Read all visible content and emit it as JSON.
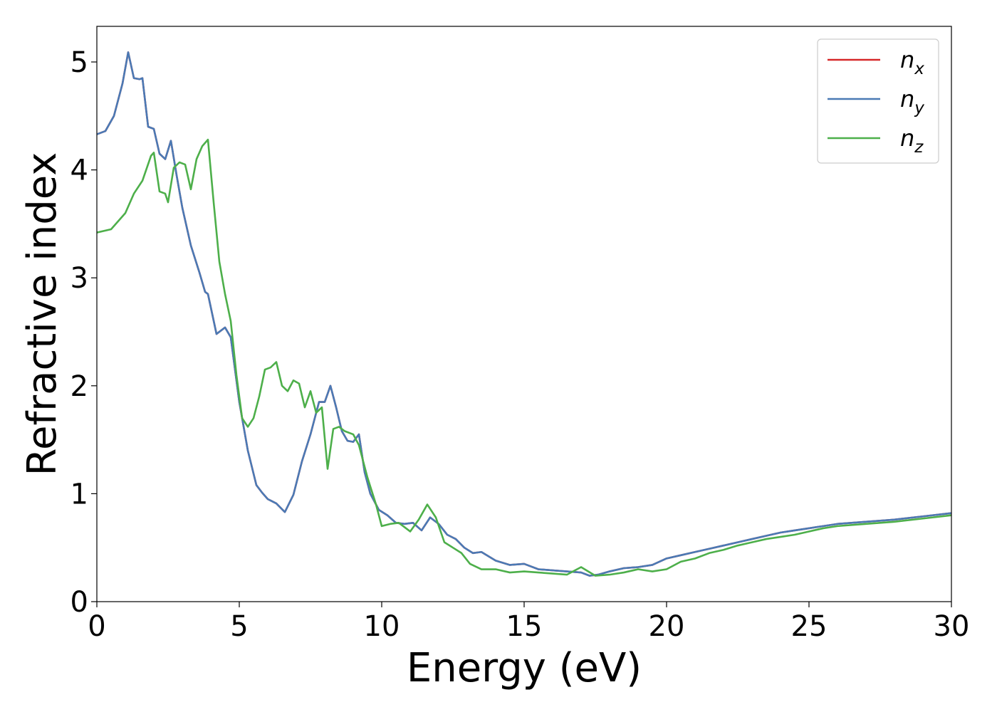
{
  "chart_data": {
    "type": "line",
    "title": "",
    "xlabel": "Energy (eV)",
    "ylabel": "Refractive index",
    "xlim": [
      0,
      30
    ],
    "ylim": [
      0,
      5.33
    ],
    "xticks": [
      0,
      5,
      10,
      15,
      20,
      25,
      30
    ],
    "xtick_labels": [
      "0",
      "5",
      "10",
      "15",
      "20",
      "25",
      "30"
    ],
    "yticks": [
      0,
      1,
      2,
      3,
      4,
      5
    ],
    "ytick_labels": [
      "0",
      "1",
      "2",
      "3",
      "4",
      "5"
    ],
    "grid": false,
    "legend_position": "top-right",
    "series": [
      {
        "name": "n",
        "subscript": "x",
        "color": "#d62728",
        "x": [
          0,
          0.3,
          0.6,
          0.9,
          1.1,
          1.3,
          1.5,
          1.6,
          1.8,
          2.0,
          2.2,
          2.4,
          2.6,
          2.8,
          3.0,
          3.3,
          3.6,
          3.8,
          3.9,
          4.2,
          4.5,
          4.7,
          5.0,
          5.3,
          5.6,
          5.8,
          6.0,
          6.3,
          6.6,
          6.9,
          7.2,
          7.5,
          7.8,
          8.0,
          8.2,
          8.4,
          8.6,
          8.8,
          9.0,
          9.2,
          9.4,
          9.6,
          9.9,
          10.2,
          10.5,
          10.8,
          11.1,
          11.4,
          11.7,
          12.0,
          12.3,
          12.6,
          12.9,
          13.2,
          13.5,
          14.0,
          14.5,
          15.0,
          15.5,
          16.0,
          16.5,
          17.0,
          17.3,
          17.6,
          18.0,
          18.5,
          19.0,
          19.5,
          20.0,
          20.5,
          21.0,
          21.5,
          22.0,
          22.5,
          23.0,
          23.5,
          24.0,
          24.5,
          25.0,
          25.5,
          26.0,
          27.0,
          28.0,
          29.0,
          30.0
        ],
        "values": [
          4.33,
          4.36,
          4.5,
          4.8,
          5.09,
          4.85,
          4.84,
          4.85,
          4.4,
          4.38,
          4.15,
          4.1,
          4.27,
          3.95,
          3.65,
          3.3,
          3.05,
          2.87,
          2.85,
          2.48,
          2.54,
          2.45,
          1.85,
          1.4,
          1.08,
          1.01,
          0.95,
          0.91,
          0.83,
          0.99,
          1.3,
          1.55,
          1.85,
          1.85,
          2.0,
          1.8,
          1.58,
          1.49,
          1.48,
          1.55,
          1.2,
          1.0,
          0.85,
          0.8,
          0.73,
          0.72,
          0.73,
          0.66,
          0.78,
          0.72,
          0.62,
          0.58,
          0.5,
          0.45,
          0.46,
          0.38,
          0.34,
          0.35,
          0.3,
          0.29,
          0.28,
          0.27,
          0.24,
          0.25,
          0.28,
          0.31,
          0.32,
          0.34,
          0.4,
          0.43,
          0.46,
          0.49,
          0.52,
          0.55,
          0.58,
          0.61,
          0.64,
          0.66,
          0.68,
          0.7,
          0.72,
          0.74,
          0.76,
          0.79,
          0.82
        ]
      },
      {
        "name": "n",
        "subscript": "y",
        "color": "#4a7ab5",
        "x": [
          0,
          0.3,
          0.6,
          0.9,
          1.1,
          1.3,
          1.5,
          1.6,
          1.8,
          2.0,
          2.2,
          2.4,
          2.6,
          2.8,
          3.0,
          3.3,
          3.6,
          3.8,
          3.9,
          4.2,
          4.5,
          4.7,
          5.0,
          5.3,
          5.6,
          5.8,
          6.0,
          6.3,
          6.6,
          6.9,
          7.2,
          7.5,
          7.8,
          8.0,
          8.2,
          8.4,
          8.6,
          8.8,
          9.0,
          9.2,
          9.4,
          9.6,
          9.9,
          10.2,
          10.5,
          10.8,
          11.1,
          11.4,
          11.7,
          12.0,
          12.3,
          12.6,
          12.9,
          13.2,
          13.5,
          14.0,
          14.5,
          15.0,
          15.5,
          16.0,
          16.5,
          17.0,
          17.3,
          17.6,
          18.0,
          18.5,
          19.0,
          19.5,
          20.0,
          20.5,
          21.0,
          21.5,
          22.0,
          22.5,
          23.0,
          23.5,
          24.0,
          24.5,
          25.0,
          25.5,
          26.0,
          27.0,
          28.0,
          29.0,
          30.0
        ],
        "values": [
          4.33,
          4.36,
          4.5,
          4.8,
          5.09,
          4.85,
          4.84,
          4.85,
          4.4,
          4.38,
          4.15,
          4.1,
          4.27,
          3.95,
          3.65,
          3.3,
          3.05,
          2.87,
          2.85,
          2.48,
          2.54,
          2.45,
          1.85,
          1.4,
          1.08,
          1.01,
          0.95,
          0.91,
          0.83,
          0.99,
          1.3,
          1.55,
          1.85,
          1.85,
          2.0,
          1.8,
          1.58,
          1.49,
          1.48,
          1.55,
          1.2,
          1.0,
          0.85,
          0.8,
          0.73,
          0.72,
          0.73,
          0.66,
          0.78,
          0.72,
          0.62,
          0.58,
          0.5,
          0.45,
          0.46,
          0.38,
          0.34,
          0.35,
          0.3,
          0.29,
          0.28,
          0.27,
          0.24,
          0.25,
          0.28,
          0.31,
          0.32,
          0.34,
          0.4,
          0.43,
          0.46,
          0.49,
          0.52,
          0.55,
          0.58,
          0.61,
          0.64,
          0.66,
          0.68,
          0.7,
          0.72,
          0.74,
          0.76,
          0.79,
          0.82
        ]
      },
      {
        "name": "n",
        "subscript": "z",
        "color": "#4daf4a",
        "x": [
          0,
          0.5,
          1.0,
          1.3,
          1.6,
          1.9,
          2.0,
          2.2,
          2.4,
          2.5,
          2.7,
          2.9,
          3.1,
          3.3,
          3.5,
          3.7,
          3.9,
          4.1,
          4.3,
          4.5,
          4.7,
          4.9,
          5.1,
          5.3,
          5.5,
          5.7,
          5.9,
          6.1,
          6.3,
          6.5,
          6.7,
          6.9,
          7.1,
          7.3,
          7.5,
          7.7,
          7.9,
          8.1,
          8.3,
          8.5,
          8.7,
          9.0,
          9.2,
          9.5,
          9.8,
          10.0,
          10.3,
          10.6,
          11.0,
          11.3,
          11.6,
          11.9,
          12.2,
          12.5,
          12.8,
          13.1,
          13.5,
          14.0,
          14.5,
          15.0,
          15.5,
          16.0,
          16.5,
          17.0,
          17.5,
          18.0,
          18.5,
          19.0,
          19.5,
          20.0,
          20.5,
          21.0,
          21.5,
          22.0,
          22.5,
          23.0,
          23.5,
          24.0,
          24.5,
          25.0,
          25.5,
          26.0,
          27.0,
          28.0,
          29.0,
          30.0
        ],
        "values": [
          3.42,
          3.45,
          3.6,
          3.78,
          3.9,
          4.13,
          4.16,
          3.8,
          3.78,
          3.7,
          4.02,
          4.07,
          4.05,
          3.82,
          4.1,
          4.22,
          4.28,
          3.7,
          3.15,
          2.85,
          2.6,
          2.1,
          1.7,
          1.62,
          1.7,
          1.9,
          2.15,
          2.17,
          2.22,
          2.0,
          1.95,
          2.05,
          2.02,
          1.8,
          1.95,
          1.75,
          1.8,
          1.23,
          1.6,
          1.62,
          1.58,
          1.55,
          1.45,
          1.15,
          0.9,
          0.7,
          0.72,
          0.73,
          0.65,
          0.76,
          0.9,
          0.78,
          0.55,
          0.5,
          0.45,
          0.35,
          0.3,
          0.3,
          0.27,
          0.28,
          0.27,
          0.26,
          0.25,
          0.32,
          0.24,
          0.25,
          0.27,
          0.3,
          0.28,
          0.3,
          0.37,
          0.4,
          0.45,
          0.48,
          0.52,
          0.55,
          0.58,
          0.6,
          0.62,
          0.65,
          0.68,
          0.7,
          0.72,
          0.74,
          0.77,
          0.8
        ]
      }
    ]
  }
}
